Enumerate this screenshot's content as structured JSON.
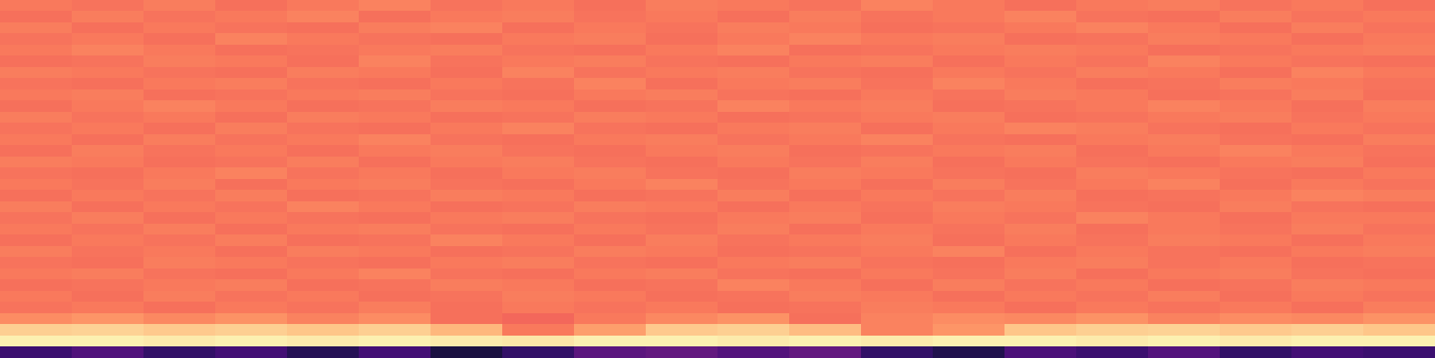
{
  "chart_data": {
    "type": "heatmap",
    "color": "magma",
    "tick_labels": false,
    "zlim": [
      0,
      1
    ],
    "cells": [
      [
        0.72,
        0.71,
        0.73,
        0.7,
        0.72,
        0.74,
        0.71,
        0.72,
        0.7,
        0.73,
        0.72,
        0.71,
        0.74,
        0.72,
        0.7,
        0.72,
        0.73,
        0.71,
        0.72,
        0.7
      ],
      [
        0.7,
        0.73,
        0.71,
        0.72,
        0.74,
        0.7,
        0.72,
        0.73,
        0.71,
        0.72,
        0.7,
        0.73,
        0.71,
        0.72,
        0.74,
        0.71,
        0.7,
        0.73,
        0.71,
        0.72
      ],
      [
        0.73,
        0.7,
        0.72,
        0.71,
        0.7,
        0.73,
        0.74,
        0.7,
        0.72,
        0.71,
        0.73,
        0.72,
        0.7,
        0.71,
        0.72,
        0.74,
        0.72,
        0.7,
        0.73,
        0.71
      ],
      [
        0.71,
        0.72,
        0.7,
        0.74,
        0.72,
        0.71,
        0.7,
        0.72,
        0.73,
        0.7,
        0.72,
        0.74,
        0.72,
        0.73,
        0.7,
        0.71,
        0.73,
        0.72,
        0.7,
        0.72
      ],
      [
        0.72,
        0.74,
        0.72,
        0.7,
        0.71,
        0.72,
        0.73,
        0.71,
        0.7,
        0.72,
        0.74,
        0.7,
        0.71,
        0.72,
        0.73,
        0.72,
        0.7,
        0.71,
        0.72,
        0.73
      ],
      [
        0.7,
        0.71,
        0.73,
        0.72,
        0.7,
        0.74,
        0.71,
        0.72,
        0.73,
        0.71,
        0.7,
        0.72,
        0.73,
        0.7,
        0.72,
        0.71,
        0.74,
        0.72,
        0.71,
        0.7
      ],
      [
        0.73,
        0.72,
        0.71,
        0.7,
        0.73,
        0.72,
        0.7,
        0.74,
        0.71,
        0.72,
        0.73,
        0.71,
        0.7,
        0.72,
        0.71,
        0.73,
        0.72,
        0.7,
        0.74,
        0.72
      ],
      [
        0.71,
        0.7,
        0.72,
        0.73,
        0.71,
        0.7,
        0.72,
        0.71,
        0.74,
        0.7,
        0.72,
        0.73,
        0.71,
        0.74,
        0.72,
        0.7,
        0.71,
        0.73,
        0.72,
        0.71
      ],
      [
        0.72,
        0.73,
        0.7,
        0.71,
        0.72,
        0.73,
        0.71,
        0.7,
        0.72,
        0.73,
        0.71,
        0.7,
        0.72,
        0.71,
        0.73,
        0.72,
        0.7,
        0.71,
        0.73,
        0.7
      ],
      [
        0.7,
        0.72,
        0.74,
        0.72,
        0.7,
        0.71,
        0.73,
        0.72,
        0.7,
        0.71,
        0.74,
        0.72,
        0.73,
        0.7,
        0.71,
        0.72,
        0.74,
        0.72,
        0.7,
        0.73
      ],
      [
        0.73,
        0.71,
        0.72,
        0.7,
        0.73,
        0.72,
        0.7,
        0.71,
        0.73,
        0.72,
        0.7,
        0.71,
        0.72,
        0.73,
        0.7,
        0.71,
        0.72,
        0.73,
        0.71,
        0.72
      ],
      [
        0.71,
        0.72,
        0.7,
        0.73,
        0.71,
        0.7,
        0.72,
        0.74,
        0.71,
        0.7,
        0.72,
        0.73,
        0.7,
        0.72,
        0.74,
        0.73,
        0.71,
        0.7,
        0.72,
        0.71
      ],
      [
        0.72,
        0.7,
        0.73,
        0.71,
        0.72,
        0.74,
        0.71,
        0.7,
        0.72,
        0.73,
        0.71,
        0.72,
        0.74,
        0.71,
        0.7,
        0.72,
        0.73,
        0.71,
        0.7,
        0.73
      ],
      [
        0.7,
        0.73,
        0.71,
        0.72,
        0.7,
        0.72,
        0.73,
        0.71,
        0.7,
        0.72,
        0.73,
        0.7,
        0.71,
        0.72,
        0.73,
        0.7,
        0.72,
        0.74,
        0.72,
        0.71
      ],
      [
        0.73,
        0.72,
        0.7,
        0.71,
        0.73,
        0.7,
        0.72,
        0.73,
        0.71,
        0.7,
        0.72,
        0.71,
        0.73,
        0.7,
        0.72,
        0.71,
        0.7,
        0.72,
        0.73,
        0.7
      ],
      [
        0.71,
        0.7,
        0.72,
        0.74,
        0.71,
        0.72,
        0.7,
        0.72,
        0.73,
        0.71,
        0.7,
        0.73,
        0.72,
        0.71,
        0.7,
        0.73,
        0.72,
        0.71,
        0.7,
        0.72
      ],
      [
        0.72,
        0.71,
        0.73,
        0.7,
        0.72,
        0.73,
        0.71,
        0.7,
        0.72,
        0.74,
        0.71,
        0.72,
        0.7,
        0.73,
        0.71,
        0.72,
        0.74,
        0.7,
        0.72,
        0.71
      ],
      [
        0.7,
        0.72,
        0.71,
        0.73,
        0.7,
        0.71,
        0.73,
        0.72,
        0.7,
        0.71,
        0.73,
        0.7,
        0.72,
        0.71,
        0.73,
        0.7,
        0.71,
        0.72,
        0.74,
        0.73
      ],
      [
        0.73,
        0.7,
        0.72,
        0.71,
        0.74,
        0.72,
        0.7,
        0.71,
        0.73,
        0.72,
        0.7,
        0.72,
        0.71,
        0.73,
        0.72,
        0.71,
        0.7,
        0.73,
        0.71,
        0.7
      ],
      [
        0.71,
        0.73,
        0.7,
        0.72,
        0.71,
        0.7,
        0.72,
        0.73,
        0.71,
        0.7,
        0.72,
        0.73,
        0.7,
        0.72,
        0.71,
        0.74,
        0.72,
        0.7,
        0.72,
        0.72
      ],
      [
        0.72,
        0.71,
        0.73,
        0.7,
        0.72,
        0.73,
        0.71,
        0.7,
        0.72,
        0.71,
        0.73,
        0.7,
        0.72,
        0.71,
        0.73,
        0.7,
        0.72,
        0.71,
        0.73,
        0.71
      ],
      [
        0.7,
        0.72,
        0.71,
        0.73,
        0.7,
        0.71,
        0.74,
        0.72,
        0.7,
        0.73,
        0.71,
        0.72,
        0.73,
        0.7,
        0.72,
        0.71,
        0.73,
        0.72,
        0.7,
        0.72
      ],
      [
        0.73,
        0.71,
        0.72,
        0.7,
        0.73,
        0.72,
        0.7,
        0.71,
        0.73,
        0.72,
        0.7,
        0.71,
        0.72,
        0.74,
        0.7,
        0.72,
        0.71,
        0.7,
        0.72,
        0.73
      ],
      [
        0.71,
        0.7,
        0.73,
        0.72,
        0.71,
        0.7,
        0.72,
        0.73,
        0.71,
        0.7,
        0.72,
        0.73,
        0.71,
        0.7,
        0.72,
        0.73,
        0.71,
        0.72,
        0.7,
        0.71
      ],
      [
        0.72,
        0.73,
        0.71,
        0.7,
        0.72,
        0.74,
        0.71,
        0.7,
        0.72,
        0.73,
        0.71,
        0.7,
        0.72,
        0.71,
        0.73,
        0.7,
        0.72,
        0.73,
        0.71,
        0.7
      ],
      [
        0.7,
        0.71,
        0.72,
        0.73,
        0.7,
        0.71,
        0.73,
        0.72,
        0.7,
        0.71,
        0.74,
        0.72,
        0.7,
        0.73,
        0.71,
        0.72,
        0.7,
        0.71,
        0.73,
        0.72
      ],
      [
        0.72,
        0.7,
        0.73,
        0.71,
        0.72,
        0.7,
        0.71,
        0.73,
        0.72,
        0.7,
        0.71,
        0.73,
        0.72,
        0.7,
        0.72,
        0.71,
        0.73,
        0.7,
        0.72,
        0.71
      ],
      [
        0.71,
        0.72,
        0.7,
        0.72,
        0.71,
        0.73,
        0.7,
        0.72,
        0.71,
        0.72,
        0.7,
        0.71,
        0.73,
        0.72,
        0.7,
        0.72,
        0.71,
        0.72,
        0.7,
        0.73
      ],
      [
        0.76,
        0.78,
        0.75,
        0.77,
        0.74,
        0.76,
        0.7,
        0.68,
        0.72,
        0.75,
        0.77,
        0.7,
        0.74,
        0.76,
        0.75,
        0.77,
        0.74,
        0.76,
        0.75,
        0.77
      ],
      [
        0.9,
        0.91,
        0.89,
        0.9,
        0.88,
        0.9,
        0.85,
        0.72,
        0.8,
        0.89,
        0.9,
        0.86,
        0.74,
        0.78,
        0.88,
        0.9,
        0.91,
        0.89,
        0.9,
        0.88
      ],
      [
        0.97,
        0.97,
        0.96,
        0.97,
        0.96,
        0.97,
        0.96,
        0.95,
        0.97,
        0.97,
        0.96,
        0.97,
        0.96,
        0.97,
        0.97,
        0.96,
        0.97,
        0.96,
        0.97,
        0.97
      ],
      [
        0.2,
        0.25,
        0.18,
        0.22,
        0.15,
        0.22,
        0.12,
        0.18,
        0.28,
        0.3,
        0.26,
        0.3,
        0.18,
        0.14,
        0.24,
        0.2,
        0.26,
        0.18,
        0.22,
        0.2
      ]
    ]
  }
}
